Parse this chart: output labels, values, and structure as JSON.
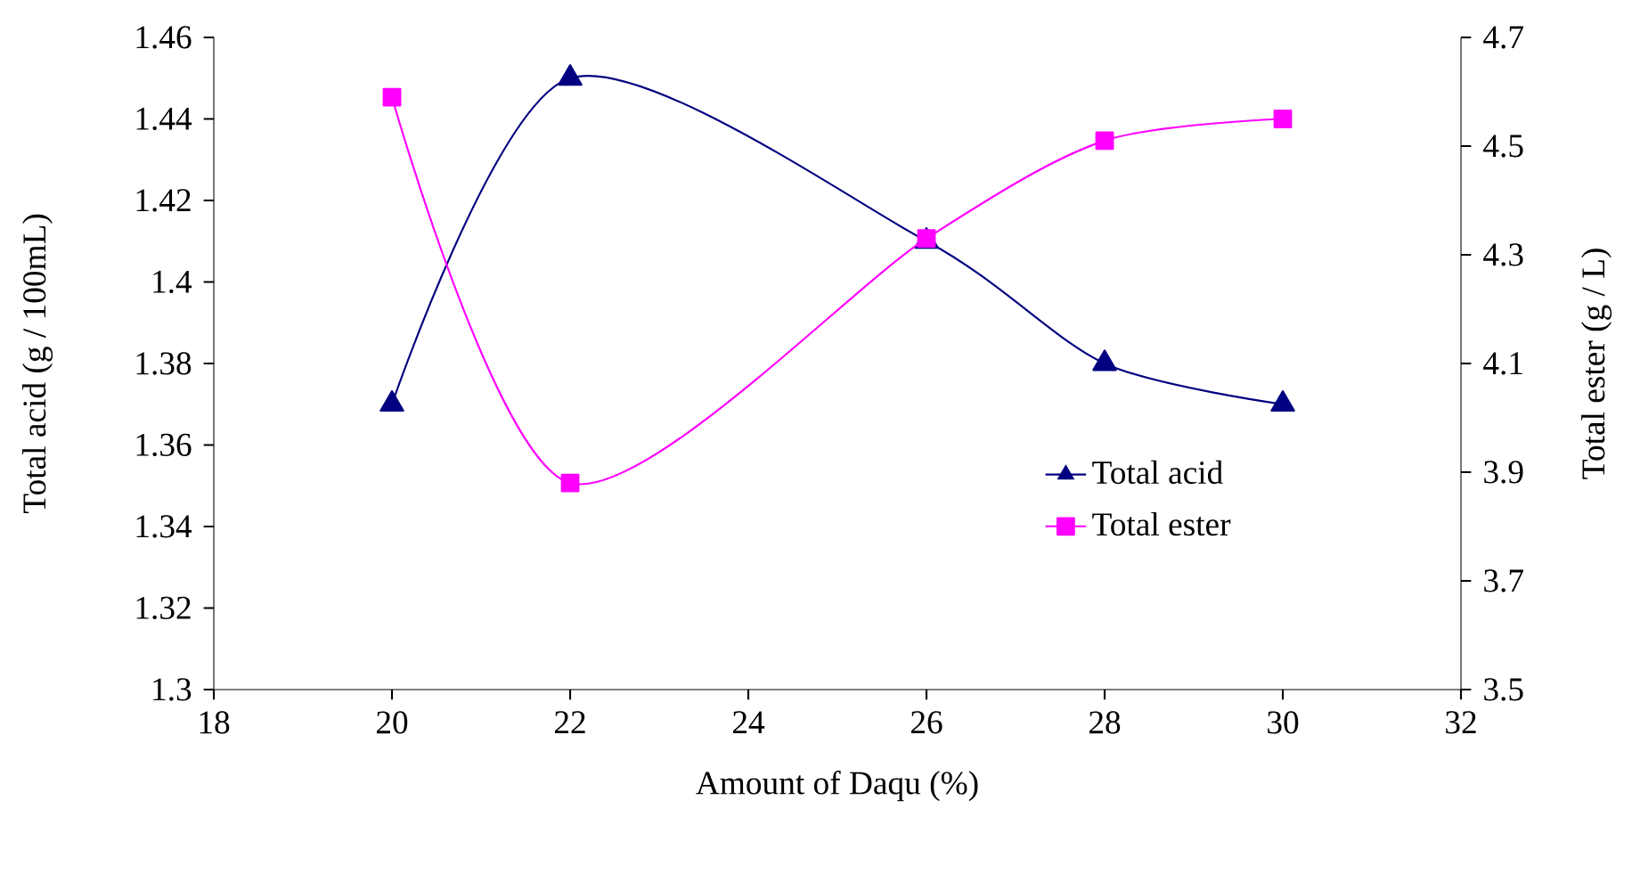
{
  "chart_data": {
    "type": "line",
    "xlabel": "Amount of Daqu (%)",
    "ylabel": "Total acid (g / 100mL)",
    "y2label": "Total ester (g / L)",
    "x": [
      20,
      22,
      26,
      28,
      30
    ],
    "series": [
      {
        "name": "Total acid",
        "color": "#000080",
        "marker": "triangle",
        "values": [
          1.37,
          1.45,
          1.41,
          1.38,
          1.37
        ]
      },
      {
        "name": "Total ester",
        "color": "#ff00ff",
        "marker": "square",
        "axis": "y2",
        "values": [
          4.59,
          3.88,
          4.33,
          4.51,
          4.55
        ]
      }
    ],
    "xlim": [
      18,
      32
    ],
    "xticks": [
      18,
      20,
      22,
      24,
      26,
      28,
      30,
      32
    ],
    "ylim": [
      1.3,
      1.46
    ],
    "yticks": [
      1.3,
      1.32,
      1.34,
      1.36,
      1.38,
      1.4,
      1.42,
      1.44,
      1.46
    ],
    "y2lim": [
      3.5,
      4.7
    ],
    "y2ticks": [
      3.5,
      3.7,
      3.9,
      4.1,
      4.3,
      4.5,
      4.7
    ],
    "grid": false,
    "legend": "right"
  }
}
